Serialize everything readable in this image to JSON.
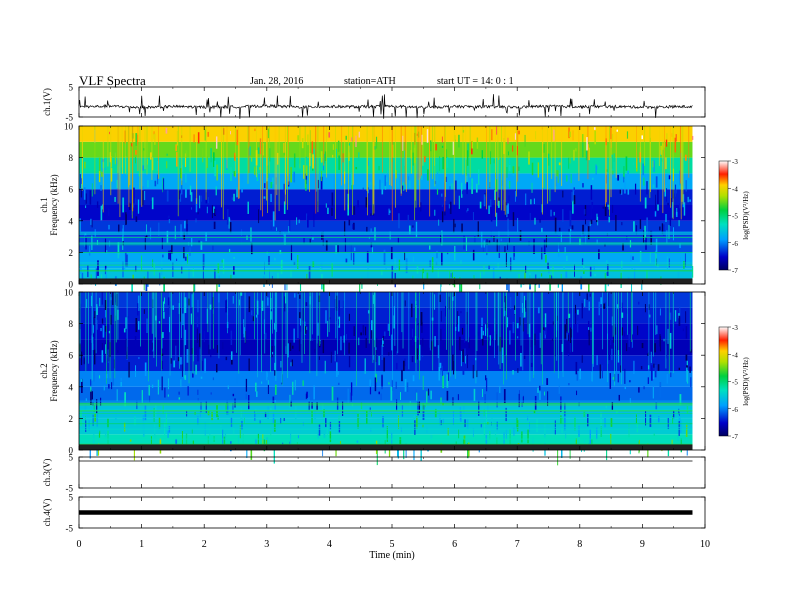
{
  "header": {
    "title": "VLF  Spectra",
    "date": "Jan. 28, 2016",
    "station": "station=ATH",
    "start_ut": "start  UT  =   14: 0  : 1"
  },
  "chart_data": [
    {
      "type": "line",
      "panel": "ch1-waveform",
      "ylabel": "ch.1(V)",
      "ylim": [
        -5,
        5
      ],
      "yticks": [
        "5",
        "-5"
      ],
      "x": [
        0,
        0.5,
        1,
        1.5,
        2,
        2.5,
        3,
        3.5,
        4,
        4.5,
        5,
        5.5,
        6,
        6.5,
        7,
        7.5,
        8,
        8.5,
        9,
        9.5,
        9.8
      ],
      "values": [
        -1.6,
        -1.4,
        -1.8,
        -1.5,
        -1.7,
        -1.6,
        -1.3,
        -1.7,
        -1.5,
        -1.6,
        -1.4,
        -1.8,
        -1.5,
        -1.6,
        -1.7,
        -1.4,
        -1.6,
        -1.5,
        -1.7,
        -1.6,
        -1.5
      ]
    },
    {
      "type": "heatmap",
      "panel": "ch1-spectrogram",
      "ylabel": "ch.1\nFrequency  (kHz)",
      "ylim": [
        0,
        10
      ],
      "yticks": [
        "0",
        "2",
        "4",
        "6",
        "8",
        "10"
      ],
      "frequency_bands_khz": [
        0.5,
        1.5,
        2.5,
        3.5,
        4.5,
        5.5,
        6.5,
        7.5,
        8.5,
        9.5
      ],
      "log_psd": [
        -5.6,
        -5.8,
        -6.2,
        -6.3,
        -6.5,
        -6.4,
        -5.8,
        -5.2,
        -4.5,
        -3.9
      ],
      "colorbar": {
        "label": "log(PSD)(V²/Hz)",
        "range": [
          -7,
          -3
        ],
        "ticks": [
          "-3",
          "-4",
          "-5",
          "-6",
          "-7"
        ]
      }
    },
    {
      "type": "heatmap",
      "panel": "ch2-spectrogram",
      "ylabel": "ch.2\nFrequency  (kHz)",
      "ylim": [
        0,
        10
      ],
      "yticks": [
        "0",
        "2",
        "4",
        "6",
        "8",
        "10"
      ],
      "frequency_bands_khz": [
        0.5,
        1.5,
        2.5,
        3.5,
        4.5,
        5.5,
        6.5,
        7.5,
        8.5,
        9.5
      ],
      "log_psd": [
        -5.3,
        -5.5,
        -5.6,
        -6.1,
        -6.0,
        -6.4,
        -6.6,
        -6.5,
        -6.4,
        -6.3
      ],
      "colorbar": {
        "label": "log(PSD)(V²/Hz)",
        "range": [
          -7,
          -3
        ],
        "ticks": [
          "-3",
          "-4",
          "-5",
          "-6",
          "-7"
        ]
      }
    },
    {
      "type": "line",
      "panel": "ch3-waveform",
      "ylabel": "ch.3(V)",
      "ylim": [
        -5,
        5
      ],
      "yticks": [
        "5",
        "-5"
      ],
      "x": [
        0,
        9.8
      ],
      "values": [
        0,
        0
      ]
    },
    {
      "type": "line",
      "panel": "ch4-waveform",
      "ylabel": "ch.4(V)",
      "ylim": [
        -5,
        5
      ],
      "yticks": [
        "5",
        "-5"
      ],
      "x": [
        0,
        9.8
      ],
      "values": [
        0,
        0
      ]
    }
  ],
  "xaxis": {
    "xlabel": "Time  (min)",
    "xlim": [
      0,
      10
    ],
    "ticks": [
      "0",
      "1",
      "2",
      "3",
      "4",
      "5",
      "6",
      "7",
      "8",
      "9",
      "10"
    ]
  },
  "colors": {
    "spectrogram_low": "#00008b",
    "spectrogram_mid": "#00c060",
    "spectrogram_high": "#ff2000"
  }
}
